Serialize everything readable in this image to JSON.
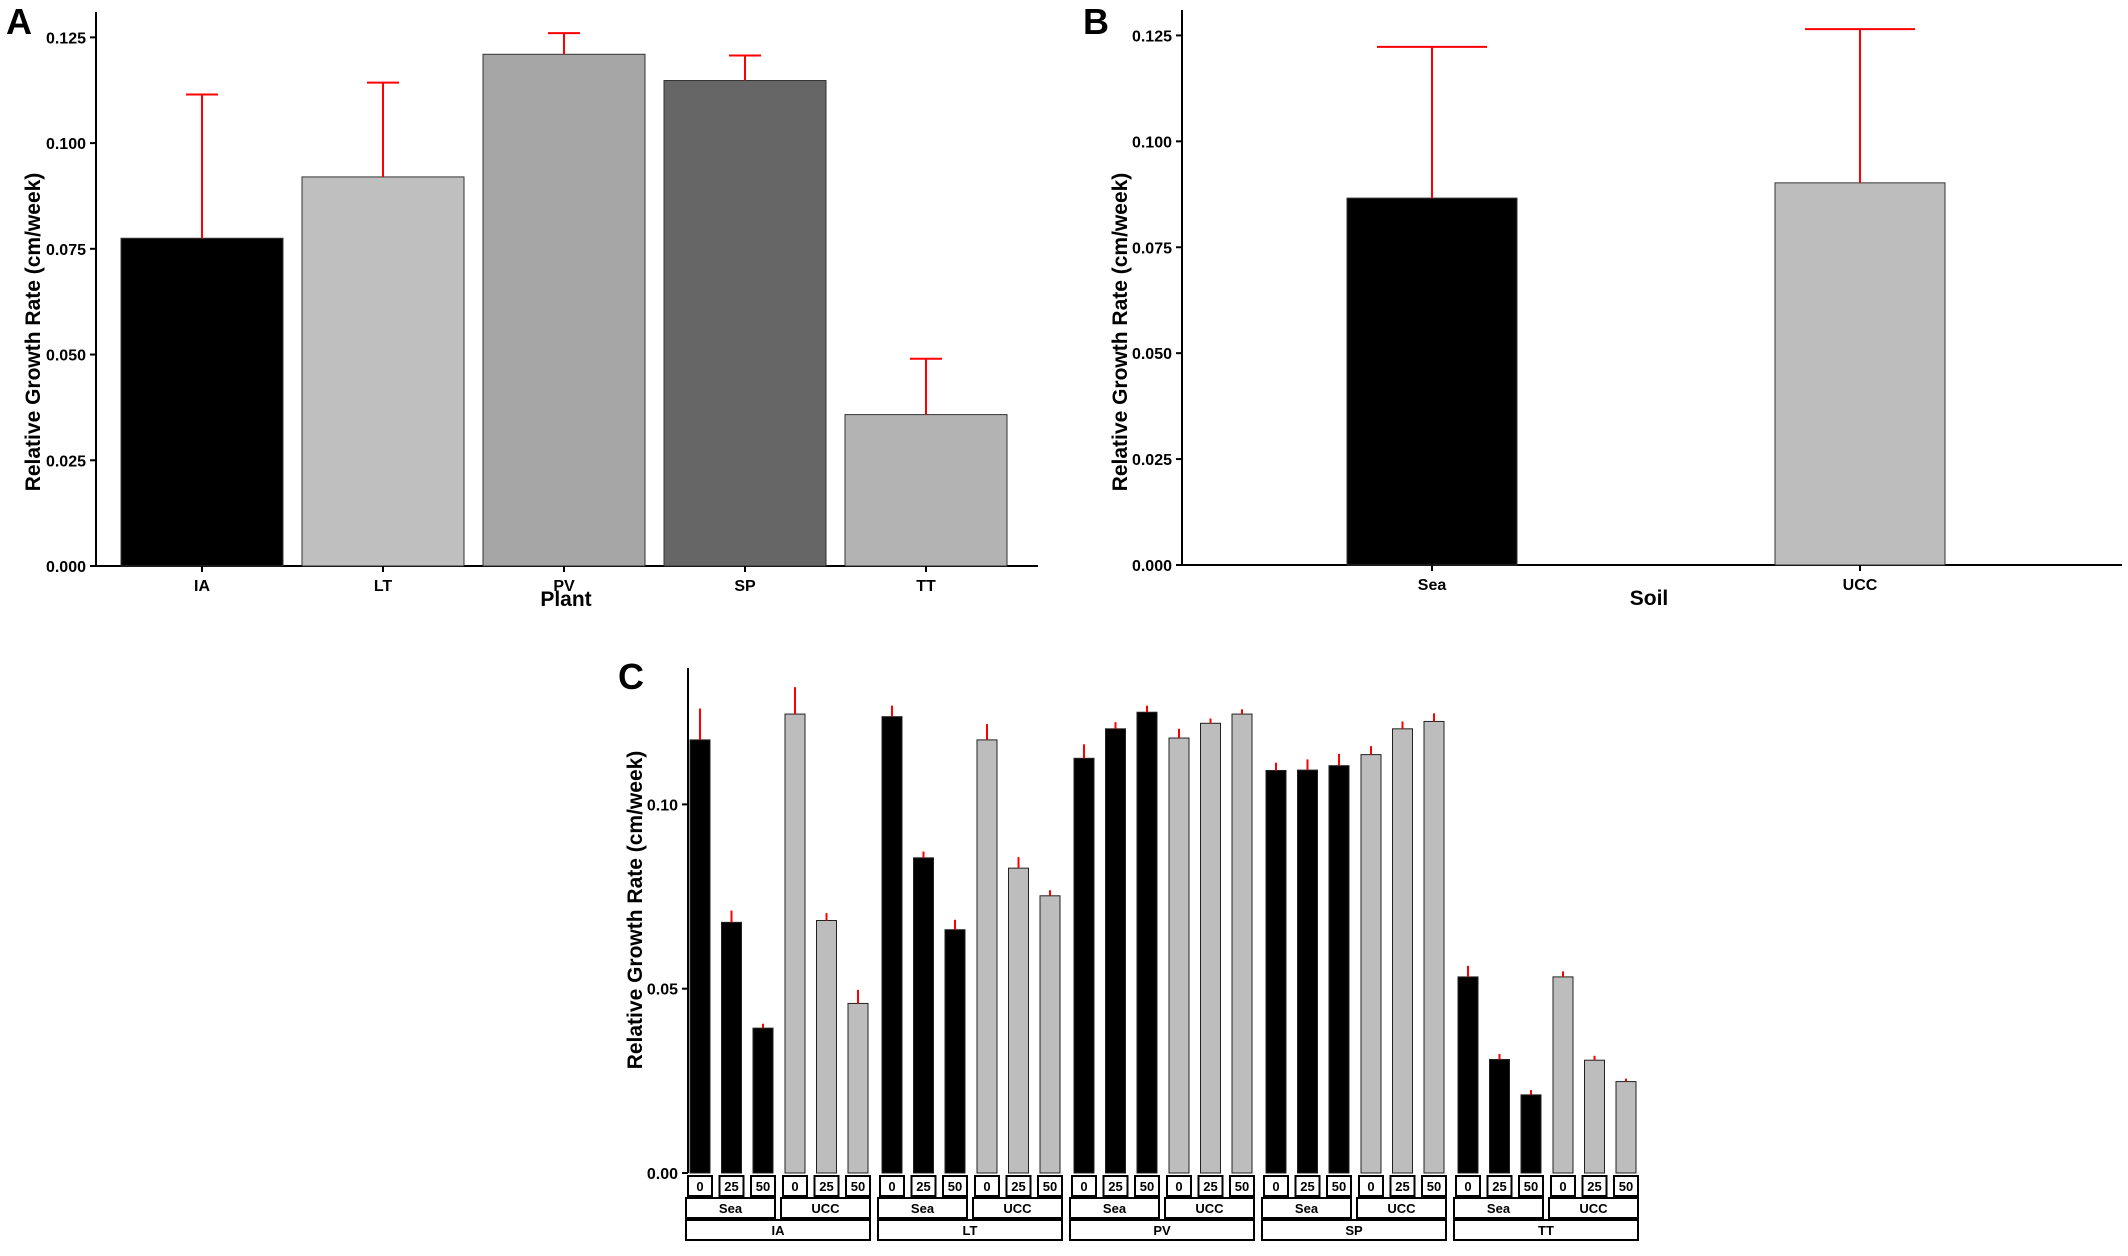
{
  "colors": {
    "error_bar": "#ff0000",
    "axis": "#000000",
    "sea_bar": "#000000",
    "ucc_bar": "#bdbdbd"
  },
  "chart_data": [
    {
      "panel": "A",
      "type": "bar",
      "xlabel": "Plant",
      "ylabel": "Relative Growth Rate (cm/week)",
      "ylim": [
        0,
        0.131
      ],
      "yticks": [
        "0.000",
        "0.025",
        "0.050",
        "0.075",
        "0.100",
        "0.125"
      ],
      "categories": [
        "IA",
        "LT",
        "PV",
        "SP",
        "TT"
      ],
      "values": [
        0.0775,
        0.092,
        0.121,
        0.1148,
        0.0358
      ],
      "error_upper": [
        0.1115,
        0.1143,
        0.126,
        0.1207,
        0.049
      ],
      "bar_colors": [
        "#000000",
        "#bfbfbf",
        "#a6a6a6",
        "#666666",
        "#b3b3b3"
      ],
      "grid": false,
      "legend": "none"
    },
    {
      "panel": "B",
      "type": "bar",
      "xlabel": "Soil",
      "ylabel": "Relative Growth Rate (cm/week)",
      "ylim": [
        0,
        0.131
      ],
      "yticks": [
        "0.000",
        "0.025",
        "0.050",
        "0.075",
        "0.100",
        "0.125"
      ],
      "categories": [
        "Sea",
        "UCC"
      ],
      "values": [
        0.0866,
        0.0902
      ],
      "error_upper": [
        0.1223,
        0.1265
      ],
      "bar_colors": [
        "#000000",
        "#bdbdbd"
      ],
      "grid": false,
      "legend": "none"
    },
    {
      "panel": "C",
      "type": "bar",
      "xlabel": "",
      "ylabel": "Relative Growth Rate (cm/week)",
      "ylim": [
        0,
        0.137
      ],
      "yticks": [
        "0.00",
        "0.05",
        "0.10"
      ],
      "facet_levels": [
        "plant",
        "soil",
        "concentration"
      ],
      "groups": [
        {
          "plant": "IA",
          "soils": [
            {
              "soil": "Sea",
              "conc": [
                "0",
                "25",
                "50"
              ],
              "values": [
                0.1175,
                0.068,
                0.0393
              ],
              "error_upper": [
                0.126,
                0.0712,
                0.0405
              ]
            },
            {
              "soil": "UCC",
              "conc": [
                "0",
                "25",
                "50"
              ],
              "values": [
                0.1245,
                0.0685,
                0.046
              ],
              "error_upper": [
                0.1318,
                0.0705,
                0.0497
              ]
            }
          ]
        },
        {
          "plant": "LT",
          "soils": [
            {
              "soil": "Sea",
              "conc": [
                "0",
                "25",
                "50"
              ],
              "values": [
                0.1238,
                0.0855,
                0.066
              ],
              "error_upper": [
                0.1268,
                0.0872,
                0.0687
              ]
            },
            {
              "soil": "UCC",
              "conc": [
                "0",
                "25",
                "50"
              ],
              "values": [
                0.1175,
                0.0827,
                0.0752
              ],
              "error_upper": [
                0.1218,
                0.0857,
                0.0767
              ]
            }
          ]
        },
        {
          "plant": "PV",
          "soils": [
            {
              "soil": "Sea",
              "conc": [
                "0",
                "25",
                "50"
              ],
              "values": [
                0.1125,
                0.1205,
                0.125
              ],
              "error_upper": [
                0.1163,
                0.1223,
                0.1268
              ]
            },
            {
              "soil": "UCC",
              "conc": [
                "0",
                "25",
                "50"
              ],
              "values": [
                0.118,
                0.122,
                0.1245
              ],
              "error_upper": [
                0.1205,
                0.1233,
                0.1258
              ]
            }
          ]
        },
        {
          "plant": "SP",
          "soils": [
            {
              "soil": "Sea",
              "conc": [
                "0",
                "25",
                "50"
              ],
              "values": [
                0.1092,
                0.1093,
                0.1105
              ],
              "error_upper": [
                0.1113,
                0.1122,
                0.1137
              ]
            },
            {
              "soil": "UCC",
              "conc": [
                "0",
                "25",
                "50"
              ],
              "values": [
                0.1135,
                0.1205,
                0.1225
              ],
              "error_upper": [
                0.1158,
                0.1225,
                0.1247
              ]
            }
          ]
        },
        {
          "plant": "TT",
          "soils": [
            {
              "soil": "Sea",
              "conc": [
                "0",
                "25",
                "50"
              ],
              "values": [
                0.0532,
                0.0308,
                0.0212
              ],
              "error_upper": [
                0.0562,
                0.0323,
                0.0225
              ]
            },
            {
              "soil": "UCC",
              "conc": [
                "0",
                "25",
                "50"
              ],
              "values": [
                0.0532,
                0.0306,
                0.0248
              ],
              "error_upper": [
                0.0547,
                0.0318,
                0.0256
              ]
            }
          ]
        }
      ],
      "grid": false,
      "legend": "none"
    }
  ]
}
